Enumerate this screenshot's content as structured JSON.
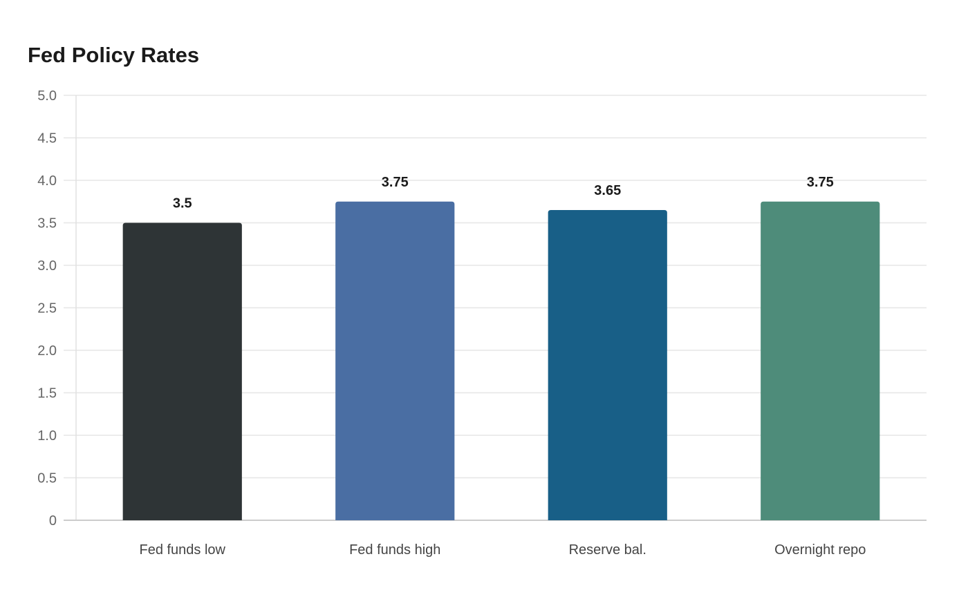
{
  "chart_data": {
    "type": "bar",
    "title": "Fed Policy Rates",
    "xlabel": "",
    "ylabel": "",
    "categories": [
      "Fed funds low",
      "Fed funds high",
      "Reserve bal.",
      "Overnight repo"
    ],
    "values": [
      3.5,
      3.75,
      3.65,
      3.75
    ],
    "value_labels": [
      "3.5",
      "3.75",
      "3.65",
      "3.75"
    ],
    "colors": [
      "#2e3436",
      "#4a6ea3",
      "#185f87",
      "#4e8c7a"
    ],
    "ylim": [
      0,
      5
    ],
    "yticks": [
      0,
      0.5,
      1,
      1.5,
      2,
      2.5,
      3,
      3.5,
      4,
      4.5,
      5
    ],
    "ytick_labels": [
      "0",
      "0.5",
      "1.0",
      "1.5",
      "2.0",
      "2.5",
      "3.0",
      "3.5",
      "4.0",
      "4.5",
      "5.0"
    ],
    "grid": true,
    "legend": "none"
  }
}
